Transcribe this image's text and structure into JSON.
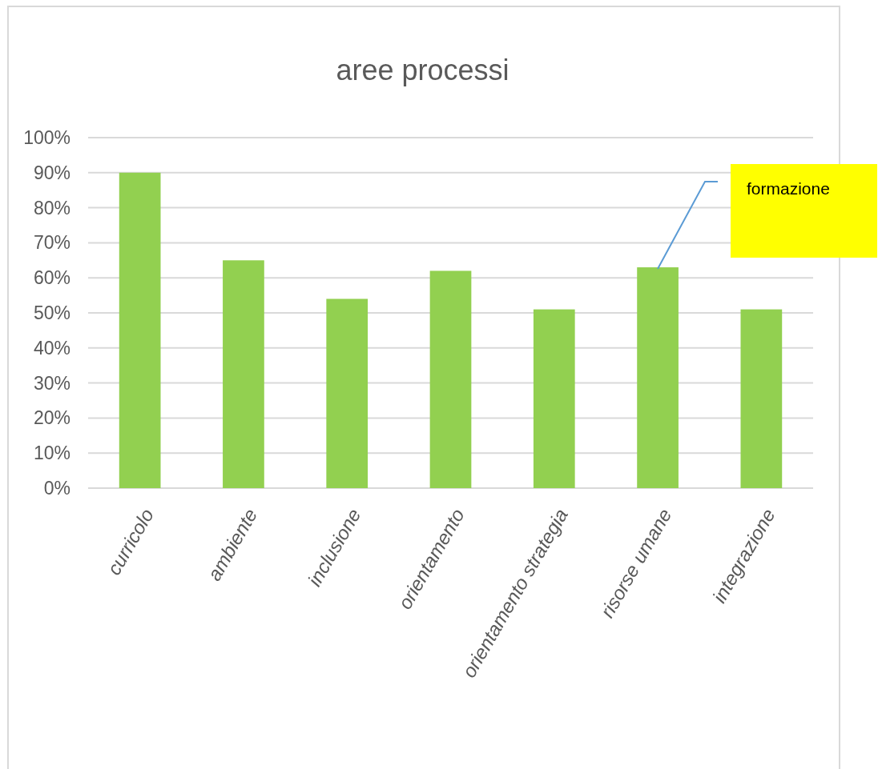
{
  "chart_data": {
    "type": "bar",
    "title": "aree processi",
    "categories": [
      "curricolo",
      "ambiente",
      "inclusione",
      "orientamento",
      "orientamento strategia",
      "risorse umane",
      "integrazione"
    ],
    "values": [
      90,
      65,
      54,
      62,
      51,
      63,
      51
    ],
    "color": "#92d050",
    "ylim": [
      0,
      100
    ],
    "yticks": [
      {
        "value": 0,
        "label": "0%"
      },
      {
        "value": 10,
        "label": "10%"
      },
      {
        "value": 20,
        "label": "20%"
      },
      {
        "value": 30,
        "label": "30%"
      },
      {
        "value": 40,
        "label": "40%"
      },
      {
        "value": 50,
        "label": "50%"
      },
      {
        "value": 60,
        "label": "60%"
      },
      {
        "value": 70,
        "label": "70%"
      },
      {
        "value": 80,
        "label": "80%"
      },
      {
        "value": 90,
        "label": "90%"
      },
      {
        "value": 100,
        "label": "100%"
      }
    ],
    "grid": "y",
    "annotations": [
      "formazione"
    ]
  }
}
